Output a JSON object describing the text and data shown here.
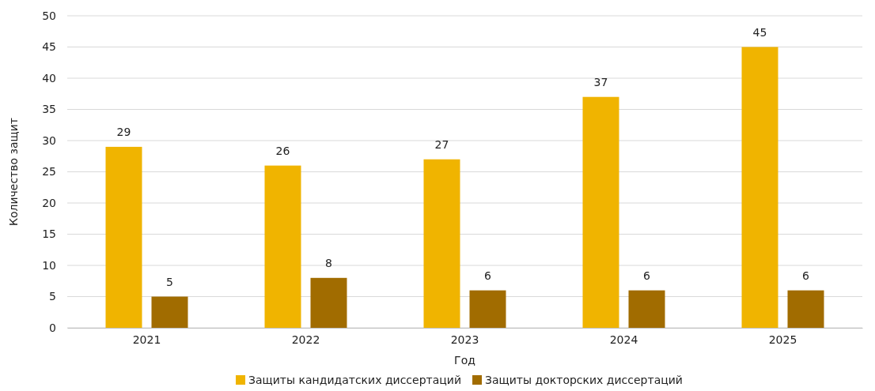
{
  "chart_data": {
    "type": "bar",
    "xlabel": "Год",
    "ylabel": "Количество защит",
    "categories": [
      "2021",
      "2022",
      "2023",
      "2024",
      "2025"
    ],
    "series": [
      {
        "name": "Защиты кандидатских диссертаций",
        "color": "#f0b400",
        "values": [
          29,
          26,
          27,
          37,
          45
        ]
      },
      {
        "name": "Защиты докторских диссертаций",
        "color": "#a16c00",
        "values": [
          5,
          8,
          6,
          6,
          6
        ]
      }
    ],
    "ylim": [
      0,
      50
    ],
    "yticks": [
      0,
      5,
      10,
      15,
      20,
      25,
      30,
      35,
      40,
      45,
      50
    ],
    "grid": "y",
    "legend": "bottom",
    "data_labels": true
  }
}
